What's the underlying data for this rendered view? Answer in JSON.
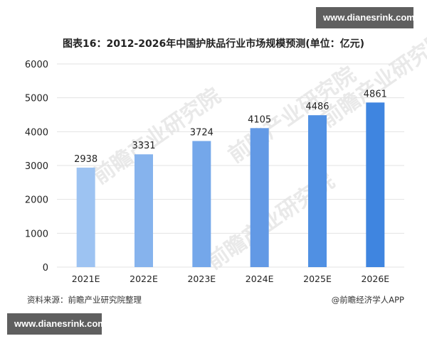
{
  "watermarks": {
    "top": "www.dianesrink.com",
    "bottom": "www.dianesrink.com",
    "background": "前瞻产业研究院"
  },
  "title": "图表16：2012-2026年中国护肤品行业市场规模预测(单位：亿元)",
  "footer": {
    "source": "资料来源：前瞻产业研究院整理",
    "credit": "@前瞻经济学人APP"
  },
  "colors": {
    "bar_start": "#9dc3f2",
    "bar_end": "#3f85e0",
    "gridline": "#e3e3e3",
    "watermark_bg": "#5f5f5f"
  },
  "chart_data": {
    "type": "bar",
    "title": "图表16：2012-2026年中国护肤品行业市场规模预测(单位：亿元)",
    "xlabel": "",
    "ylabel": "",
    "categories": [
      "2021E",
      "2022E",
      "2023E",
      "2024E",
      "2025E",
      "2026E"
    ],
    "values": [
      2938,
      3331,
      3724,
      4105,
      4486,
      4861
    ],
    "bar_colors": [
      "#9dc3f2",
      "#86b3ed",
      "#74a7ea",
      "#6299e5",
      "#5090e3",
      "#3f85e0"
    ],
    "ylim": [
      0,
      6000
    ],
    "yticks": [
      0,
      1000,
      2000,
      3000,
      4000,
      5000,
      6000
    ],
    "grid": true,
    "legend": null,
    "data_labels": true
  }
}
